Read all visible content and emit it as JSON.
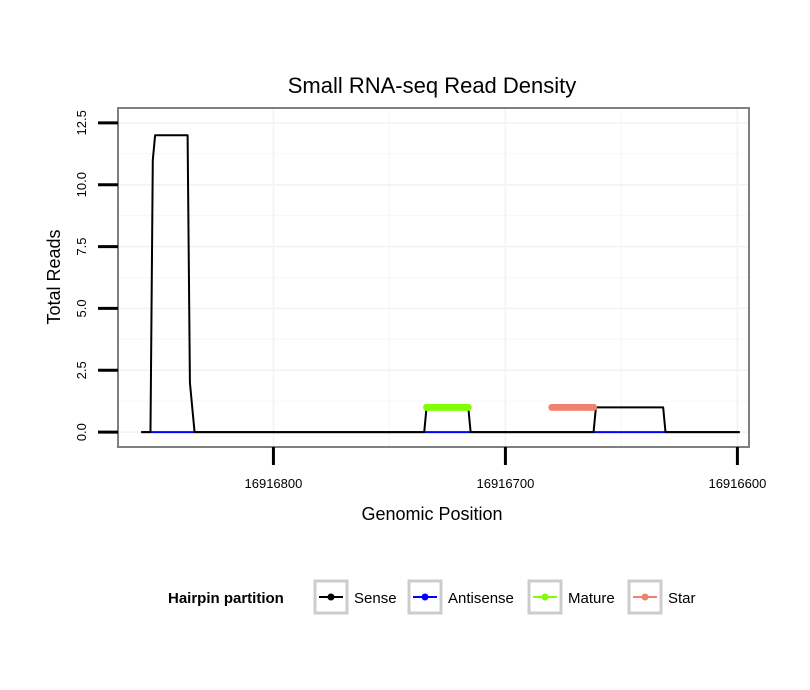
{
  "chart_data": {
    "type": "line",
    "title": "Small RNA-seq Read Density",
    "xlabel": "Genomic Position",
    "ylabel": "Total Reads",
    "x_reversed": true,
    "xlim": [
      16916867,
      16916595
    ],
    "ylim": [
      -0.6,
      13.1
    ],
    "x_ticks": [
      16916800,
      16916700,
      16916600
    ],
    "x_tick_labels": [
      "16916800",
      "16916700",
      "16916600"
    ],
    "y_ticks": [
      0,
      2.5,
      5,
      7.5,
      10,
      12.5
    ],
    "y_tick_labels": [
      "0.0",
      "2.5",
      "5.0",
      "7.5",
      "10.0",
      "12.5"
    ],
    "grid": true,
    "legend": {
      "title": "Hairpin partition",
      "placement": "bottom",
      "entries": [
        "Sense",
        "Antisense",
        "Mature",
        "Star"
      ]
    },
    "series": [
      {
        "name": "Sense",
        "color": "#000000",
        "x": [
          16916857,
          16916853,
          16916852,
          16916851,
          16916837,
          16916836,
          16916834,
          16916800,
          16916750,
          16916735,
          16916734,
          16916730,
          16916716,
          16916715,
          16916680,
          16916662,
          16916661,
          16916657,
          16916632,
          16916631,
          16916621,
          16916620,
          16916599
        ],
        "y": [
          0,
          0,
          11,
          12,
          12,
          2,
          0,
          0,
          0,
          0,
          1,
          1,
          1,
          0,
          0,
          0,
          1,
          1,
          1,
          0,
          0,
          0,
          0
        ]
      },
      {
        "name": "Antisense",
        "color": "#0000ff",
        "x": [
          16916857,
          16916599
        ],
        "y": [
          0,
          0
        ]
      },
      {
        "name": "Mature",
        "color": "#7fff00",
        "x": [
          16916734,
          16916733,
          16916732,
          16916731,
          16916730,
          16916729,
          16916728,
          16916727,
          16916726,
          16916725,
          16916724,
          16916723,
          16916722,
          16916721,
          16916720,
          16916719,
          16916718,
          16916717,
          16916716
        ],
        "y": [
          1,
          1,
          1,
          1,
          1,
          1,
          1,
          1,
          1,
          1,
          1,
          1,
          1,
          1,
          1,
          1,
          1,
          1,
          1
        ]
      },
      {
        "name": "Star",
        "color": "#f08070",
        "x": [
          16916680,
          16916679,
          16916678,
          16916677,
          16916676,
          16916675,
          16916674,
          16916673,
          16916672,
          16916671,
          16916670,
          16916669,
          16916668,
          16916667,
          16916666,
          16916665,
          16916664,
          16916663,
          16916662
        ],
        "y": [
          1,
          1,
          1,
          1,
          1,
          1,
          1,
          1,
          1,
          1,
          1,
          1,
          1,
          1,
          1,
          1,
          1,
          1,
          1
        ]
      }
    ]
  }
}
